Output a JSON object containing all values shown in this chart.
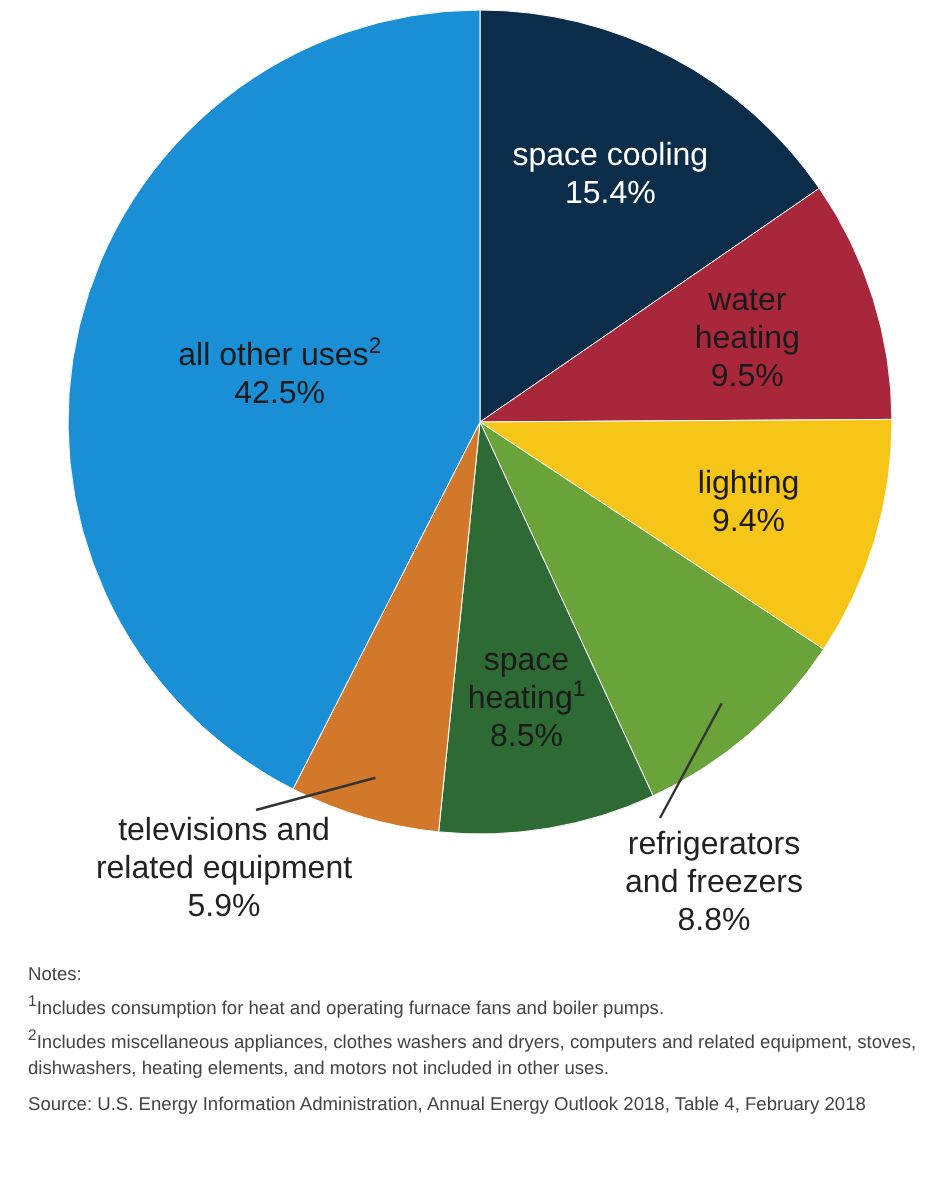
{
  "chart_data": {
    "type": "pie",
    "categories": [
      "space cooling",
      "water heating",
      "lighting",
      "refrigerators and freezers",
      "space heating$^{1}$",
      "televisions and related equipment",
      "all other uses$^{2}$"
    ],
    "values": [
      15.4,
      9.5,
      9.4,
      8.8,
      8.5,
      5.9,
      42.5
    ],
    "colors": [
      "#0c2d4a",
      "#a8273a",
      "#f5c518",
      "#6aa33a",
      "#2e6b34",
      "#d2782a",
      "#1b8fd6"
    ],
    "value_labels": [
      "15.4%",
      "9.5%",
      "9.4%",
      "8.8%",
      "8.5%",
      "5.9%",
      "42.5%"
    ],
    "annotations": [
      "Notes:",
      "$^{1}$Includes consumption for heat and operating furnace fans and boiler pumps.",
      "$^{2}$Includes miscellaneous appliances, clothes washers and dryers, computers and related equipment, stoves, dishwashers, heating elements, and motors not included in other uses.",
      "Source: U.S. Energy Information Administration, Annual Energy Outlook 2018, Table 4, February 2018"
    ]
  }
}
